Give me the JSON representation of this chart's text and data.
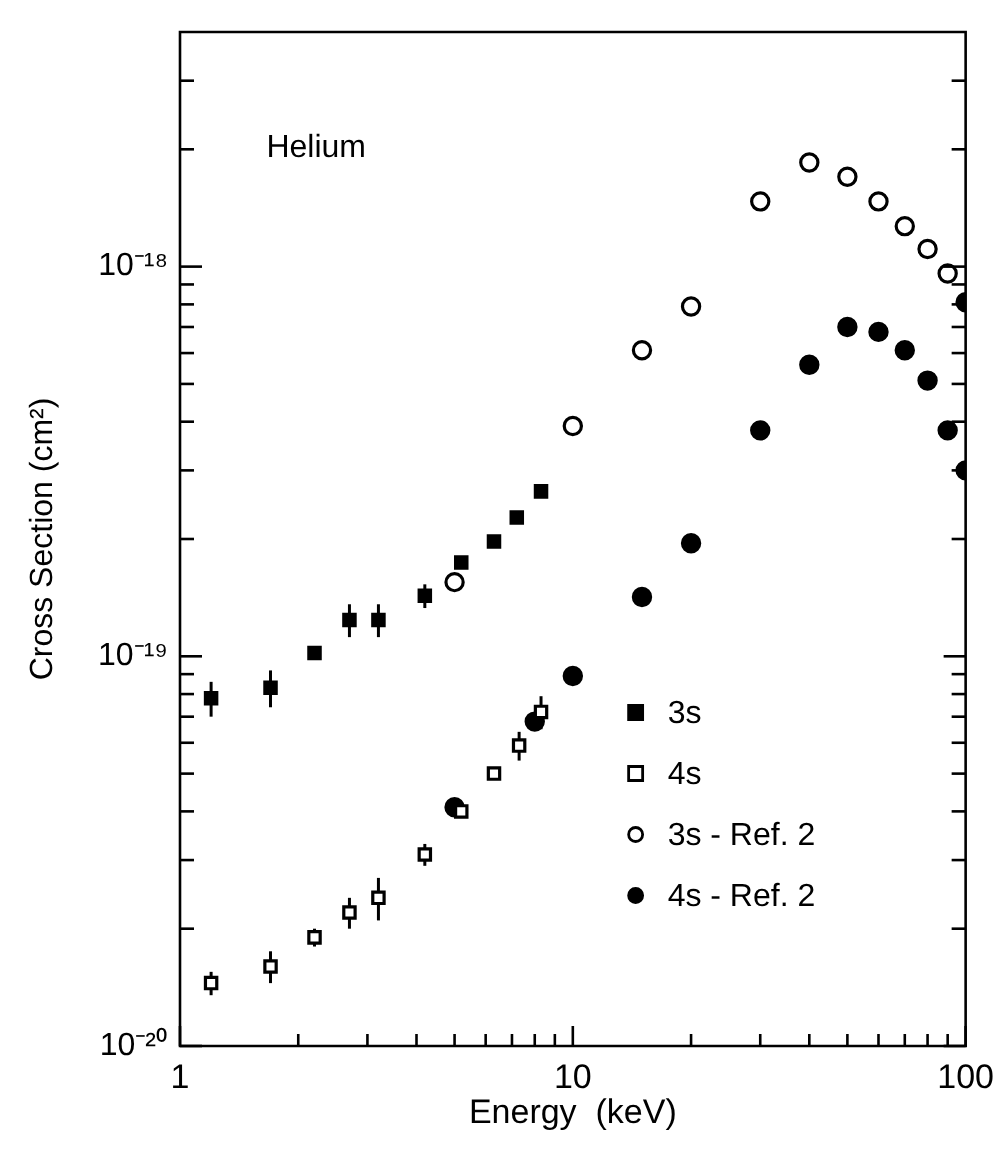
{
  "chart_data": {
    "type": "scatter",
    "xlabel": "Energy  (keV)",
    "ylabel": "Cross Section (cm²)",
    "annotations": [
      "Helium"
    ],
    "log": "xy",
    "grid": false,
    "legend": "bottom right",
    "xlim": [
      1,
      100
    ],
    "ylim": [
      1e-20,
      4e-18
    ],
    "xticks": [
      {
        "value": 1,
        "label": "1"
      },
      {
        "value": 2,
        "label": null
      },
      {
        "value": 3,
        "label": null
      },
      {
        "value": 4,
        "label": null
      },
      {
        "value": 5,
        "label": null
      },
      {
        "value": 6,
        "label": null
      },
      {
        "value": 7,
        "label": null
      },
      {
        "value": 8,
        "label": null
      },
      {
        "value": 9,
        "label": null
      },
      {
        "value": 10,
        "label": "10"
      },
      {
        "value": 20,
        "label": null
      },
      {
        "value": 30,
        "label": null
      },
      {
        "value": 40,
        "label": null
      },
      {
        "value": 50,
        "label": null
      },
      {
        "value": 60,
        "label": null
      },
      {
        "value": 70,
        "label": null
      },
      {
        "value": 80,
        "label": null
      },
      {
        "value": 90,
        "label": null
      },
      {
        "value": 100,
        "label": "100"
      }
    ],
    "yticks": [
      {
        "value": 1e-20,
        "label": "10⁻²⁰"
      },
      {
        "value": 2e-20,
        "label": null
      },
      {
        "value": 3e-20,
        "label": null
      },
      {
        "value": 4e-20,
        "label": null
      },
      {
        "value": 5e-20,
        "label": null
      },
      {
        "value": 6e-20,
        "label": null
      },
      {
        "value": 7e-20,
        "label": null
      },
      {
        "value": 8e-20,
        "label": null
      },
      {
        "value": 9e-20,
        "label": null
      },
      {
        "value": 1e-19,
        "label": "10⁻¹⁹"
      },
      {
        "value": 2e-19,
        "label": null
      },
      {
        "value": 3e-19,
        "label": null
      },
      {
        "value": 4e-19,
        "label": null
      },
      {
        "value": 5e-19,
        "label": null
      },
      {
        "value": 6e-19,
        "label": null
      },
      {
        "value": 7e-19,
        "label": null
      },
      {
        "value": 8e-19,
        "label": null
      },
      {
        "value": 9e-19,
        "label": null
      },
      {
        "value": 1e-18,
        "label": "10⁻¹⁸"
      },
      {
        "value": 2e-18,
        "label": null
      },
      {
        "value": 3e-18,
        "label": null
      }
    ],
    "series": [
      {
        "name": "3s",
        "color": "#000000",
        "marker": "square",
        "x": [
          1.2,
          1.7,
          2.2,
          2.7,
          3.2,
          4.2,
          5.2,
          6.3,
          7.2,
          8.3
        ],
        "values": [
          7.8e-20,
          8.3e-20,
          1.02e-19,
          1.24e-19,
          1.24e-19,
          1.43e-19,
          1.74e-19,
          1.97e-19,
          2.27e-19,
          2.65e-19
        ],
        "errors": [
          8e-21,
          9e-21,
          null,
          1.2e-20,
          1.2e-20,
          1e-20,
          null,
          null,
          null,
          null
        ]
      },
      {
        "name": "4s",
        "color": "#ffffff",
        "marker": "square",
        "x": [
          1.2,
          1.7,
          2.2,
          2.7,
          3.2,
          4.2,
          5.2,
          6.3,
          7.3,
          8.3
        ],
        "values": [
          1.45e-20,
          1.6e-20,
          1.9e-20,
          2.2e-20,
          2.4e-20,
          3.1e-20,
          4e-20,
          5e-20,
          5.9e-20,
          7.2e-20
        ],
        "errors": [
          1e-21,
          1.5e-21,
          1e-21,
          2e-21,
          3e-21,
          2e-21,
          null,
          null,
          5e-21,
          7e-21
        ]
      },
      {
        "name": "3s - Ref. 2",
        "color": "#ffffff",
        "marker": "circle",
        "x": [
          5,
          10,
          15,
          20,
          30,
          40,
          50,
          60,
          70,
          80,
          90
        ],
        "values": [
          1.55e-19,
          3.9e-19,
          6.1e-19,
          7.9e-19,
          1.47e-18,
          1.85e-18,
          1.7e-18,
          1.47e-18,
          1.27e-18,
          1.11e-18,
          9.6e-19
        ]
      },
      {
        "name": "4s - Ref. 2",
        "color": "#000000",
        "marker": "circle",
        "x": [
          5,
          8,
          10,
          15,
          20,
          30,
          40,
          50,
          60,
          70,
          80,
          90,
          100,
          100
        ],
        "values": [
          4.1e-20,
          6.8e-20,
          8.9e-20,
          1.42e-19,
          1.95e-19,
          3.8e-19,
          5.6e-19,
          7e-19,
          6.8e-19,
          6.1e-19,
          5.1e-19,
          3.8e-19,
          8.1e-19,
          3e-19
        ]
      }
    ]
  }
}
